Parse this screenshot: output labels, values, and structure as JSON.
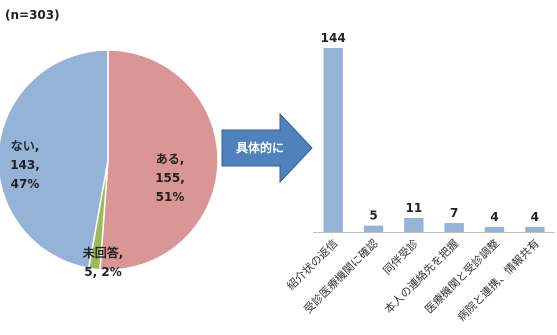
{
  "sample_size": "(n=303)",
  "arrow_label": "具体的に",
  "colors": {
    "pie_yes": "#DA9694",
    "pie_no": "#95B3D7",
    "pie_no_answer": "#9BBB59",
    "bar": "#95B3D7",
    "arrow_fill": "#4F81BD",
    "arrow_stroke": "#385D8A"
  },
  "chart_data": [
    {
      "type": "pie",
      "slices": [
        {
          "label": "ある,",
          "value": 155,
          "value_text": "155,",
          "percent": 51,
          "percent_text": "51%"
        },
        {
          "label": "未回答,",
          "value": 5,
          "value_text": "5, 2%",
          "percent": 2
        },
        {
          "label": "ない,",
          "value": 143,
          "value_text": "143,",
          "percent": 47,
          "percent_text": "47%"
        }
      ]
    },
    {
      "type": "bar",
      "categories": [
        "紹介状の返信",
        "受診医療機関に確認",
        "同伴受診",
        "本人の連絡先を把握",
        "医療機関と受診調整",
        "病院と連携、情報共有"
      ],
      "values": [
        144,
        5,
        11,
        7,
        4,
        4
      ],
      "value_labels": [
        "144",
        "5",
        "11",
        "7",
        "4",
        "4"
      ],
      "ylim": [
        0,
        160
      ]
    }
  ]
}
